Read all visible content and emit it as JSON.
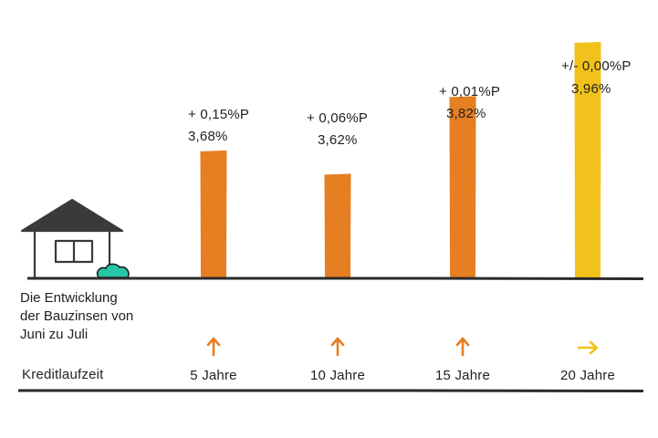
{
  "chart_data": {
    "type": "bar",
    "categories": [
      "5 Jahre",
      "10 Jahre",
      "15 Jahre",
      "20 Jahre"
    ],
    "values": [
      3.68,
      3.62,
      3.82,
      3.96
    ],
    "value_labels": [
      "3,68%",
      "3,62%",
      "3,82%",
      "3,96%"
    ],
    "change_labels": [
      "+ 0,15%P",
      "+ 0,06%P",
      "+ 0,01%P",
      "+/- 0,00%P"
    ],
    "change_direction": [
      "up",
      "up",
      "up",
      "flat"
    ],
    "bar_colors": [
      "#e67e22",
      "#e67e22",
      "#e67e22",
      "#f1c21b"
    ],
    "xlabel": "Kreditlaufzeit",
    "ylim": [
      3.35,
      4.0
    ],
    "grid": false,
    "legend": "none"
  },
  "description": [
    "Die Entwicklung",
    "der Bauzinsen von",
    "Juni zu Juli"
  ],
  "icons": {
    "house": "house-icon",
    "bush": "bush-icon",
    "up": "arrow-up-icon",
    "flat": "arrow-right-icon"
  },
  "colors": {
    "axis": "#2b2b2b",
    "house": "#3a3a3a",
    "bush": "#26c6a6",
    "up_arrow": "#e67e22",
    "flat_arrow": "#f1c21b"
  }
}
